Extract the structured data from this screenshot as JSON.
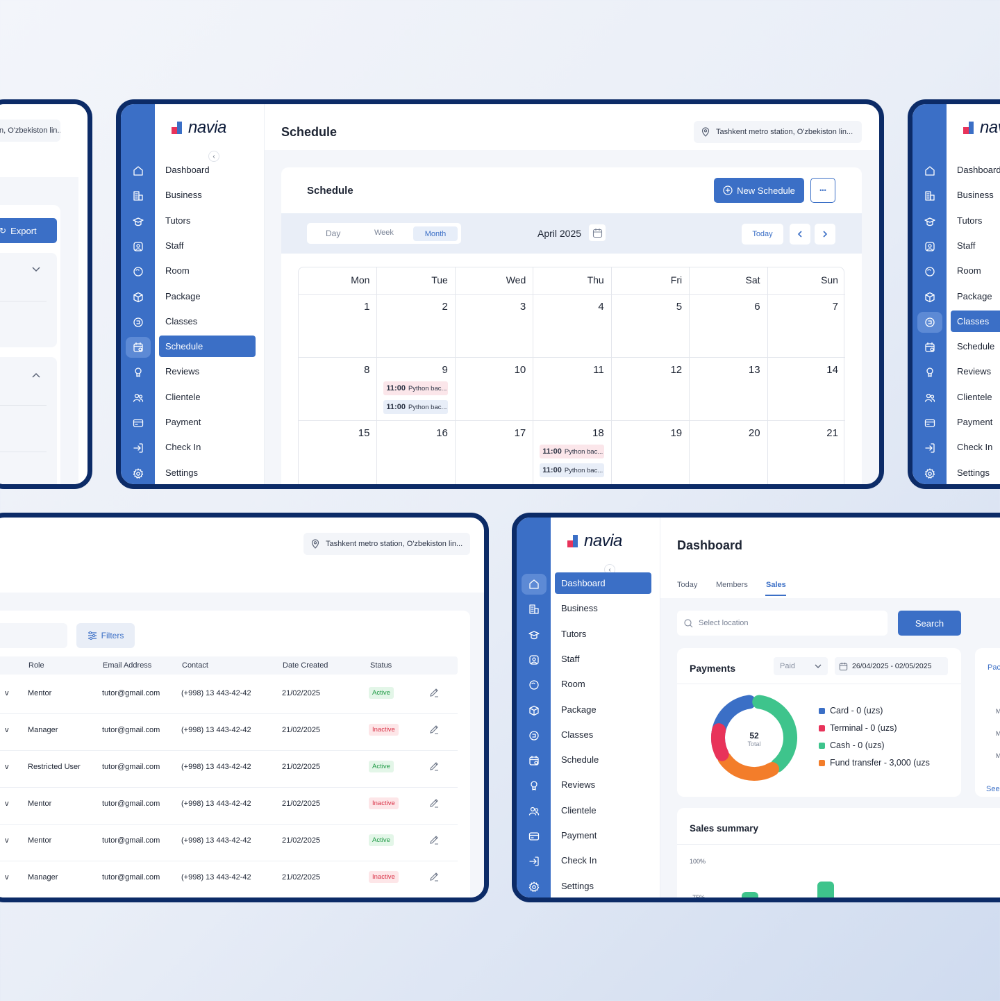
{
  "colors": {
    "brand": "#3b6fc6",
    "frame": "#0c2b67",
    "active_green": "#1f9a45",
    "inactive_red": "#d93247"
  },
  "brand": {
    "name": "navia"
  },
  "sidebar_items": [
    "Dashboard",
    "Business",
    "Tutors",
    "Staff",
    "Room",
    "Package",
    "Classes",
    "Schedule",
    "Reviews",
    "Clientele",
    "Payment",
    "Check In",
    "Settings"
  ],
  "sidebar_icons": [
    "home-icon",
    "business-icon",
    "tutors-icon",
    "staff-icon",
    "room-icon",
    "package-icon",
    "classes-icon",
    "schedule-icon",
    "reviews-icon",
    "clientele-icon",
    "payment-icon",
    "checkin-icon",
    "settings-icon"
  ],
  "location": {
    "full": "Tashkent metro station, O'zbekiston lin...",
    "partial": "n, O'zbekiston lin..."
  },
  "left_panel": {
    "export_label": "Export"
  },
  "schedule": {
    "page_title": "Schedule",
    "card_title": "Schedule",
    "new_schedule_label": "New Schedule",
    "more_label": "•••",
    "views": [
      "Day",
      "Week",
      "Month"
    ],
    "active_view": "Month",
    "month_label": "April 2025",
    "today_label": "Today",
    "weekdays": [
      "Mon",
      "Tue",
      "Wed",
      "Thu",
      "Fri",
      "Sat",
      "Sun"
    ],
    "weeks": [
      [
        "1",
        "2",
        "3",
        "4",
        "5",
        "6",
        "7"
      ],
      [
        "8",
        "9",
        "10",
        "11",
        "12",
        "13",
        "14"
      ],
      [
        "15",
        "16",
        "17",
        "18",
        "19",
        "20",
        "21"
      ]
    ],
    "events": [
      {
        "week": 1,
        "day": 1,
        "time": "11:00",
        "title": "Python bac...",
        "color": "pink"
      },
      {
        "week": 1,
        "day": 1,
        "time": "11:00",
        "title": "Python bac...",
        "color": "blue"
      },
      {
        "week": 2,
        "day": 3,
        "time": "11:00",
        "title": "Python bac...",
        "color": "pink"
      },
      {
        "week": 2,
        "day": 3,
        "time": "11:00",
        "title": "Python bac...",
        "color": "blue"
      }
    ]
  },
  "staff_table": {
    "filters_label": "Filters",
    "headers": [
      "Role",
      "Email Address",
      "Contact",
      "Date Created",
      "Status"
    ],
    "rows": [
      {
        "role": "Mentor",
        "email": "tutor@gmail.com",
        "contact": "(+998) 13 443-42-42",
        "date": "21/02/2025",
        "status": "Active"
      },
      {
        "role": "Manager",
        "email": "tutor@gmail.com",
        "contact": "(+998) 13 443-42-42",
        "date": "21/02/2025",
        "status": "Inactive"
      },
      {
        "role": "Restricted User",
        "email": "tutor@gmail.com",
        "contact": "(+998) 13 443-42-42",
        "date": "21/02/2025",
        "status": "Active"
      },
      {
        "role": "Mentor",
        "email": "tutor@gmail.com",
        "contact": "(+998) 13 443-42-42",
        "date": "21/02/2025",
        "status": "Inactive"
      },
      {
        "role": "Mentor",
        "email": "tutor@gmail.com",
        "contact": "(+998) 13 443-42-42",
        "date": "21/02/2025",
        "status": "Active"
      },
      {
        "role": "Manager",
        "email": "tutor@gmail.com",
        "contact": "(+998) 13 443-42-42",
        "date": "21/02/2025",
        "status": "Inactive"
      }
    ]
  },
  "dashboard": {
    "page_title": "Dashboard",
    "tabs": [
      "Today",
      "Members",
      "Sales"
    ],
    "active_tab": "Sales",
    "search_placeholder": "Select location",
    "search_label": "Search",
    "payments_title": "Payments",
    "status_filter": "Paid",
    "date_range": "26/04/2025 - 02/05/2025",
    "total_value": "52",
    "total_label": "Total",
    "legend": [
      {
        "label": "Card - 0 (uzs)",
        "color": "#3b6fc6"
      },
      {
        "label": "Terminal - 0 (uzs)",
        "color": "#e8335a"
      },
      {
        "label": "Cash - 0 (uzs)",
        "color": "#3ec48c"
      },
      {
        "label": "Fund transfer - 3,000 (uzs",
        "color": "#f37d2a"
      }
    ],
    "sales_summary_title": "Sales summary",
    "y_label_top": "100%",
    "y_label_second": "75%",
    "peek_header": "Pac",
    "peek_letters": [
      "M",
      "M",
      "M"
    ],
    "see_label": "See"
  }
}
